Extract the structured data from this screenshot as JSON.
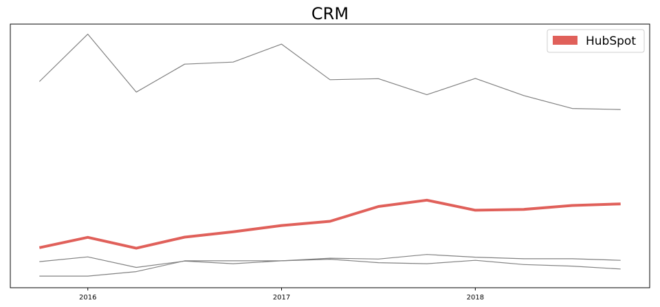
{
  "chart_data": {
    "type": "line",
    "title": "CRM",
    "xlabel": "",
    "ylabel": "",
    "x": [
      2015.75,
      2016.0,
      2016.25,
      2016.5,
      2016.75,
      2017.0,
      2017.25,
      2017.5,
      2017.75,
      2018.0,
      2018.25,
      2018.5,
      2018.75
    ],
    "x_ticks": [
      2016,
      2017,
      2018
    ],
    "x_tick_labels": [
      "2016",
      "2017",
      "2018"
    ],
    "xlim": [
      2015.6,
      2018.9
    ],
    "ylim": [
      0,
      100
    ],
    "show_y_ticks": false,
    "grid": false,
    "legend_position": "top-right",
    "highlight_color": "#e0605a",
    "other_color": "#808080",
    "series": [
      {
        "name": "HubSpot",
        "highlight": true,
        "values": [
          15.2,
          19.1,
          15.0,
          19.2,
          21.2,
          23.6,
          25.2,
          30.8,
          33.2,
          29.4,
          29.7,
          31.2,
          31.8
        ]
      },
      {
        "highlight": false,
        "values": [
          78.2,
          96.2,
          74.2,
          84.8,
          85.6,
          92.4,
          78.9,
          79.3,
          73.2,
          79.4,
          72.9,
          68.0,
          67.6
        ]
      },
      {
        "highlight": false,
        "values": [
          9.9,
          11.7,
          7.7,
          10.1,
          9.1,
          10.2,
          11.2,
          10.9,
          12.6,
          11.6,
          11.0,
          11.0,
          10.4
        ]
      },
      {
        "highlight": false,
        "values": [
          4.4,
          4.4,
          6.1,
          10.2,
          10.2,
          10.2,
          10.8,
          9.5,
          9.1,
          10.4,
          8.8,
          8.2,
          7.1
        ]
      }
    ]
  }
}
